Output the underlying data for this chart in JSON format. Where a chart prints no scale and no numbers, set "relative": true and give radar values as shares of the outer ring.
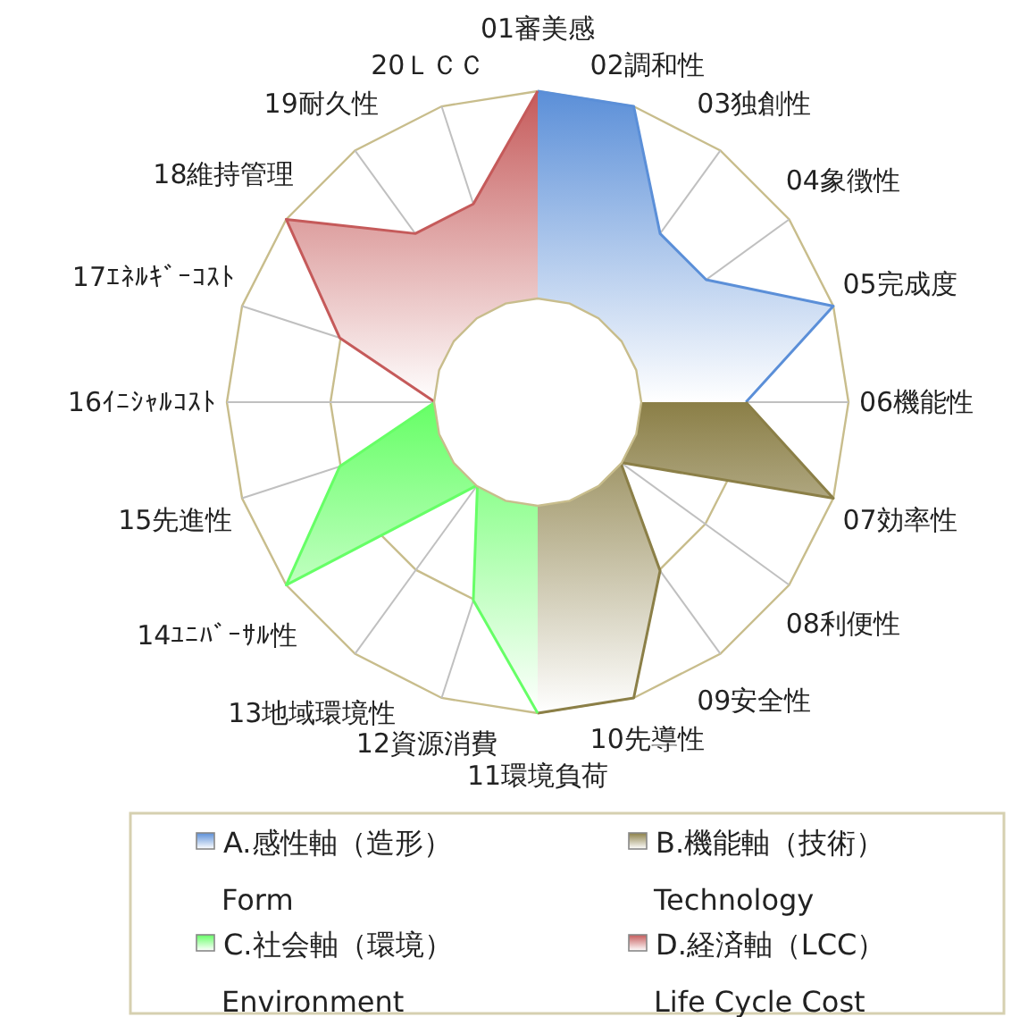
{
  "chart_data": {
    "type": "radar",
    "relative": true,
    "grid": true,
    "legend": "bottom",
    "categories": [
      "01審美感",
      "02調和性",
      "03独創性",
      "04象徴性",
      "05完成度",
      "06機能性",
      "07効率性",
      "08利便性",
      "09安全性",
      "10先導性",
      "11環境負荷",
      "12資源消費",
      "13地域環境性",
      "14ﾕﾆﾊﾞｰｻﾙ性",
      "15先進性",
      "16ｲﾆｼｬﾙｺｽﾄ",
      "17ｴﾈﾙｷﾞｰｺｽﾄ",
      "18維持管理",
      "19耐久性",
      "20ＬＣＣ"
    ],
    "series": [
      {
        "name": "A.感性軸（造形）\nForm",
        "color": "#5b8fd8",
        "values": [
          1,
          1,
          0.67,
          0.67,
          1,
          0.67,
          null,
          null,
          null,
          null,
          null,
          null,
          null,
          null,
          null,
          null,
          null,
          null,
          null,
          null
        ]
      },
      {
        "name": "B.機能軸（技術）\nTechnology",
        "color": "#8b7f47",
        "values": [
          null,
          null,
          null,
          null,
          null,
          0.67,
          1,
          0.33,
          0.67,
          1,
          1,
          null,
          null,
          null,
          null,
          null,
          null,
          null,
          null,
          null
        ]
      },
      {
        "name": "C.社会軸（環境）\nEnvironment",
        "color": "#66ff66",
        "values": [
          null,
          null,
          null,
          null,
          null,
          null,
          null,
          null,
          null,
          null,
          1,
          0.67,
          0.33,
          1,
          0.67,
          0.33,
          null,
          null,
          null,
          null
        ]
      },
      {
        "name": "D.経済軸（LCC）\nLife Cycle Cost",
        "color": "#c55a5a",
        "values": [
          1,
          null,
          null,
          null,
          null,
          null,
          null,
          null,
          null,
          null,
          null,
          null,
          null,
          null,
          null,
          0.33,
          0.67,
          1,
          0.67,
          0.67
        ]
      }
    ]
  }
}
